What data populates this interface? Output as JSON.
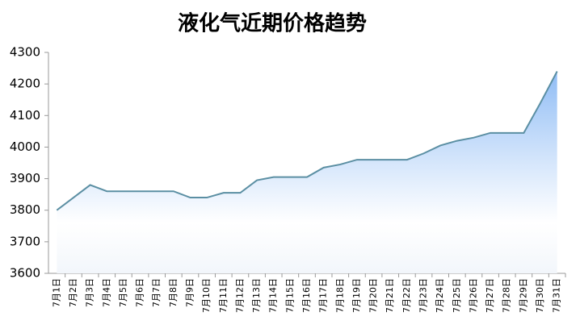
{
  "chart_data": {
    "type": "area",
    "title": "液化气近期价格趋势",
    "categories": [
      "7月1日",
      "7月2日",
      "7月3日",
      "7月4日",
      "7月5日",
      "7月6日",
      "7月7日",
      "7月8日",
      "7月9日",
      "7月10日",
      "7月11日",
      "7月12日",
      "7月13日",
      "7月14日",
      "7月15日",
      "7月16日",
      "7月17日",
      "7月18日",
      "7月19日",
      "7月20日",
      "7月21日",
      "7月22日",
      "7月23日",
      "7月24日",
      "7月25日",
      "7月26日",
      "7月27日",
      "7月28日",
      "7月29日",
      "7月30日",
      "7月31日"
    ],
    "values": [
      3800,
      3840,
      3880,
      3860,
      3860,
      3860,
      3860,
      3860,
      3840,
      3840,
      3855,
      3855,
      3895,
      3905,
      3905,
      3905,
      3935,
      3945,
      3960,
      3960,
      3960,
      3960,
      3980,
      4005,
      4020,
      4030,
      4045,
      4045,
      4045,
      4140,
      4240
    ],
    "color": "#5b8fa3",
    "fill_color": "#8fbcf5",
    "ylim": [
      3600,
      4300
    ],
    "yticks": [
      3600,
      3700,
      3800,
      3900,
      4000,
      4100,
      4200,
      4300
    ]
  }
}
